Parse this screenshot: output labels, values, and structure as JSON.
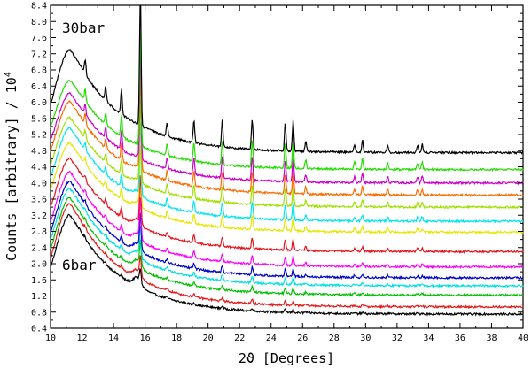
{
  "chart_data": {
    "type": "line",
    "title": "",
    "xlabel": "2ϑ [Degrees]",
    "ylabel_prefix": "Counts [arbitrary] / 10",
    "ylabel_exponent": "4",
    "xlim": [
      10,
      40
    ],
    "ylim": [
      0.4,
      8.4
    ],
    "x_ticks": [
      "10",
      "12",
      "14",
      "16",
      "18",
      "20",
      "22",
      "24",
      "26",
      "28",
      "30",
      "32",
      "34",
      "36",
      "38",
      "40"
    ],
    "y_ticks": [
      "0.4",
      "0.8",
      "1.2",
      "1.6",
      "2.0",
      "2.4",
      "2.8",
      "3.2",
      "3.6",
      "4.0",
      "4.4",
      "4.8",
      "5.2",
      "5.6",
      "6.0",
      "6.4",
      "6.8",
      "7.2",
      "7.6",
      "8.0",
      "8.4"
    ],
    "annotations": {
      "top": "30bar",
      "bottom": "6bar"
    },
    "peak_positions_2theta": [
      12.2,
      13.5,
      14.5,
      15.7,
      17.4,
      19.1,
      20.9,
      22.8,
      24.9,
      25.4,
      26.2,
      29.3,
      29.8,
      31.4,
      33.3,
      33.6
    ],
    "series": [
      {
        "name": "6bar",
        "color": "#000000",
        "base": 0.75,
        "hump": 2.55,
        "peak_gain": 0.1
      },
      {
        "name": "",
        "color": "#e41a1c",
        "base": 0.93,
        "hump": 2.65,
        "peak_gain": 0.14
      },
      {
        "name": "",
        "color": "#00c000",
        "base": 1.22,
        "hump": 2.5,
        "peak_gain": 0.18
      },
      {
        "name": "",
        "color": "#00e0e0",
        "base": 1.45,
        "hump": 2.5,
        "peak_gain": 0.22
      },
      {
        "name": "",
        "color": "#0000cc",
        "base": 1.65,
        "hump": 2.48,
        "peak_gain": 0.26
      },
      {
        "name": "",
        "color": "#ff00ff",
        "base": 1.92,
        "hump": 2.45,
        "peak_gain": 0.3
      },
      {
        "name": "",
        "color": "#e8141e",
        "base": 2.3,
        "hump": 2.4,
        "peak_gain": 0.36
      },
      {
        "name": "",
        "color": "#e6e600",
        "base": 2.78,
        "hump": 2.3,
        "peak_gain": 0.45
      },
      {
        "name": "",
        "color": "#00e5ee",
        "base": 3.05,
        "hump": 2.4,
        "peak_gain": 0.55
      },
      {
        "name": "",
        "color": "#a0e000",
        "base": 3.4,
        "hump": 2.3,
        "peak_gain": 0.62
      },
      {
        "name": "",
        "color": "#ff6a00",
        "base": 3.7,
        "hump": 2.4,
        "peak_gain": 0.7
      },
      {
        "name": "",
        "color": "#cc00cc",
        "base": 4.0,
        "hump": 2.3,
        "peak_gain": 0.78
      },
      {
        "name": "",
        "color": "#22dd00",
        "base": 4.33,
        "hump": 2.3,
        "peak_gain": 0.86
      },
      {
        "name": "30bar",
        "color": "#000000",
        "base": 4.75,
        "hump": 2.65,
        "peak_gain": 1.0
      }
    ]
  }
}
